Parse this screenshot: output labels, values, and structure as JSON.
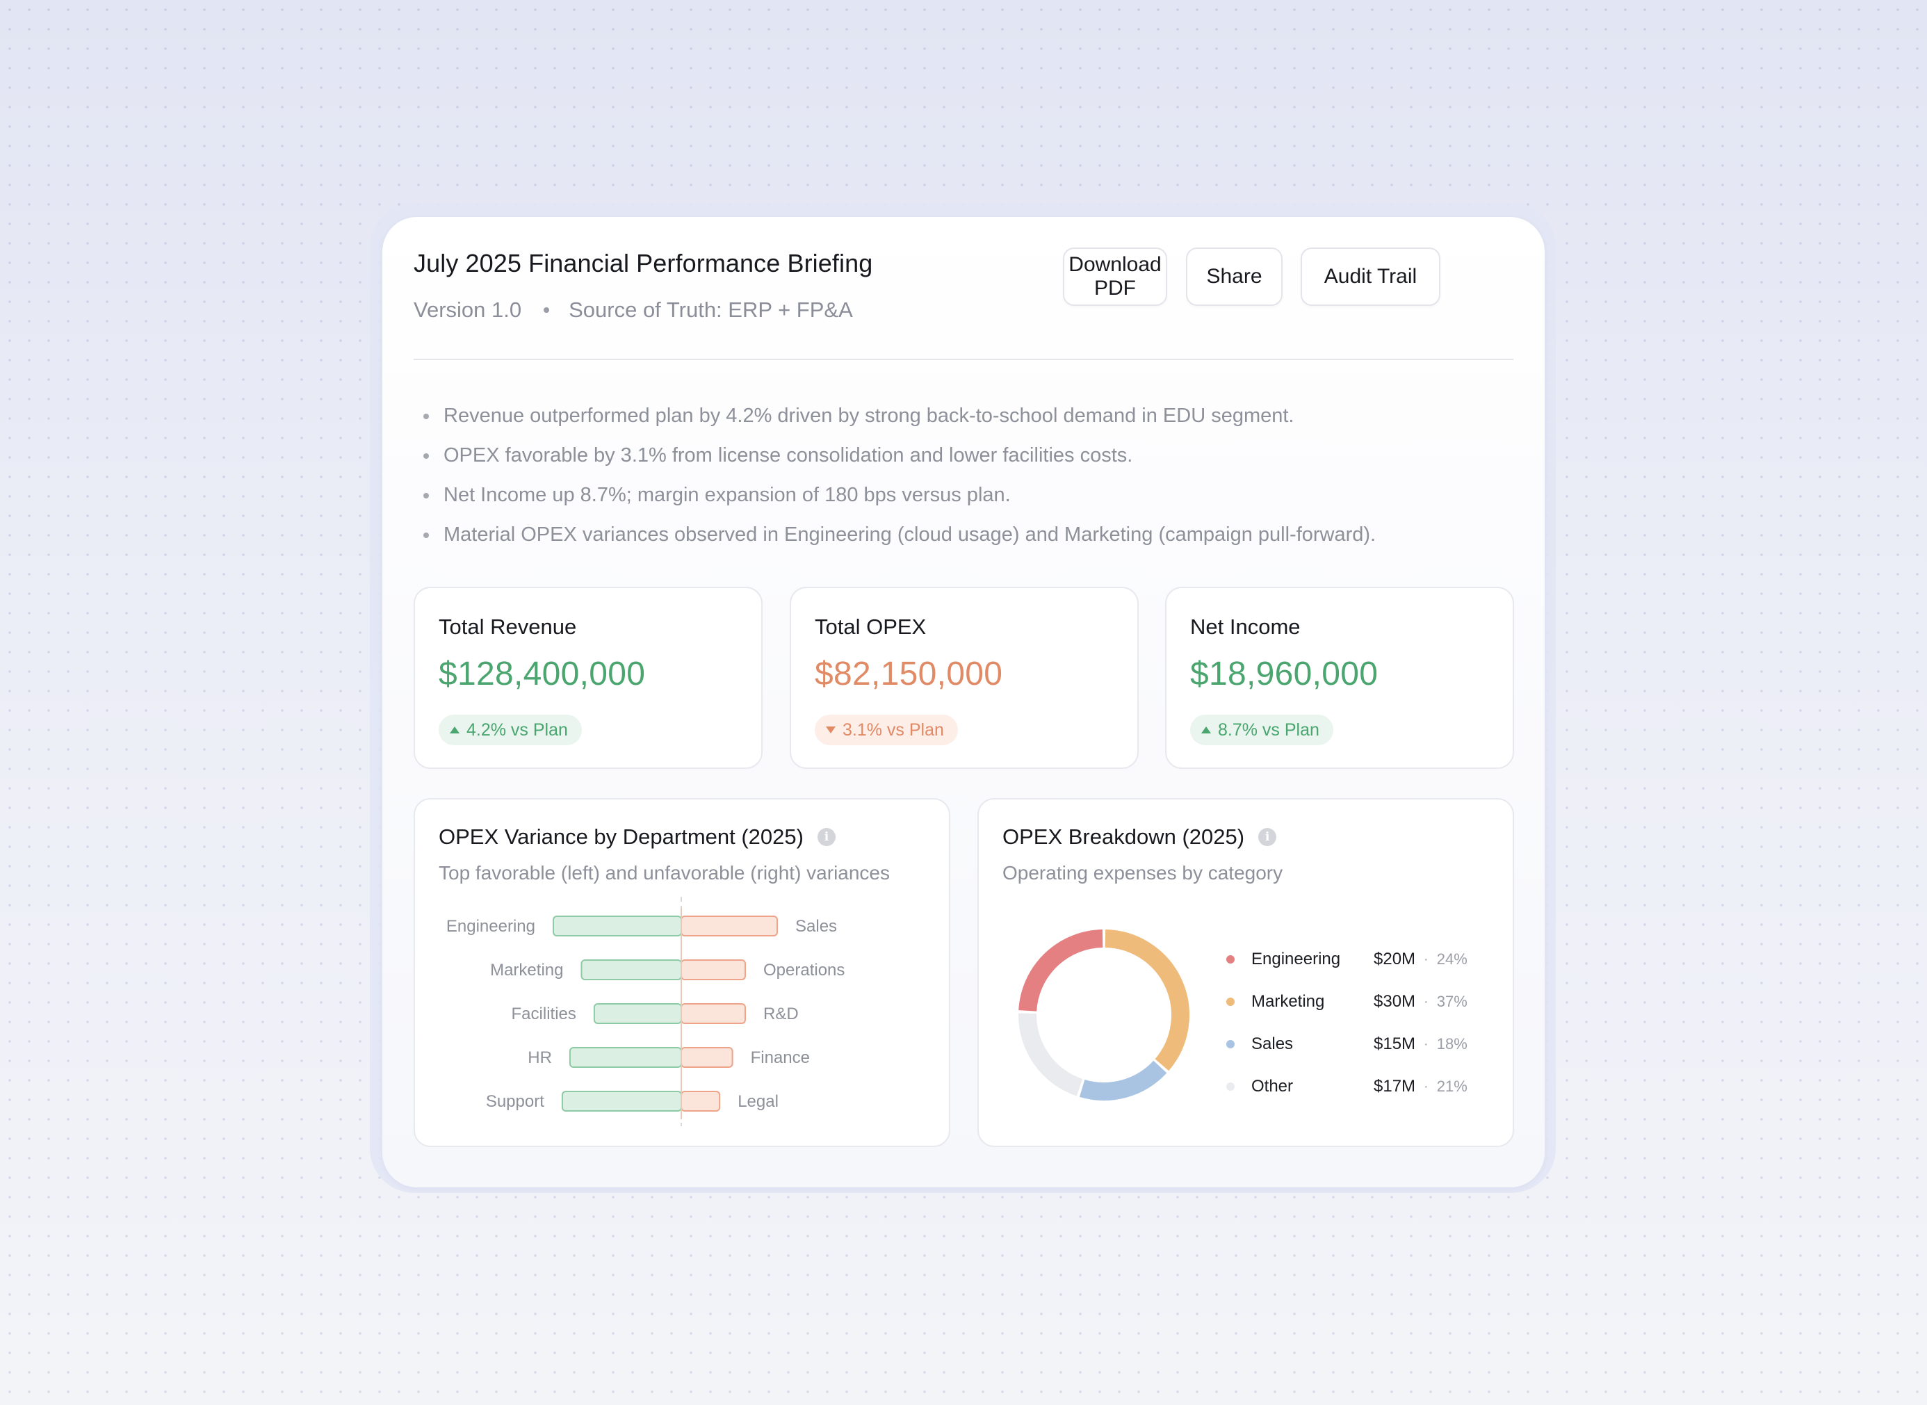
{
  "header": {
    "title": "July 2025 Financial Performance Briefing",
    "version": "Version 1.0",
    "source": "Source of Truth: ERP + FP&A"
  },
  "actions": {
    "download": "Download PDF",
    "share": "Share",
    "audit": "Audit Trail"
  },
  "highlights": [
    "Revenue outperformed plan by 4.2% driven by strong back-to-school demand in EDU segment.",
    "OPEX favorable by 3.1% from license consolidation and lower facilities costs.",
    "Net Income up 8.7%; margin expansion of 180 bps versus plan.",
    "Material OPEX variances observed in Engineering (cloud usage) and Marketing (campaign pull-forward)."
  ],
  "kpis": [
    {
      "label": "Total Revenue",
      "value": "$128,400,000",
      "delta": "4.2% vs Plan",
      "direction": "up",
      "color": "#4aa56f"
    },
    {
      "label": "Total OPEX",
      "value": "$82,150,000",
      "delta": "3.1% vs Plan",
      "direction": "down",
      "color": "#e08a66"
    },
    {
      "label": "Net Income",
      "value": "$18,960,000",
      "delta": "8.7% vs Plan",
      "direction": "up",
      "color": "#4aa56f"
    }
  ],
  "variance_panel": {
    "title": "OPEX Variance by Department (2025)",
    "subtitle": "Top favorable (left) and unfavorable (right) variances"
  },
  "breakdown_panel": {
    "title": "OPEX Breakdown (2025)",
    "subtitle": "Operating expenses by category",
    "legend": [
      {
        "name": "Engineering",
        "value": "$20M",
        "pct": "24%",
        "color": "#e47f82"
      },
      {
        "name": "Marketing",
        "value": "$30M",
        "pct": "37%",
        "color": "#eebb7a"
      },
      {
        "name": "Sales",
        "value": "$15M",
        "pct": "18%",
        "color": "#a9c3e3"
      },
      {
        "name": "Other",
        "value": "$17M",
        "pct": "21%",
        "color": "#eaebef"
      }
    ]
  },
  "chart_data": [
    {
      "type": "bar",
      "orientation": "diverging-horizontal",
      "favorable": {
        "categories": [
          "Engineering",
          "Marketing",
          "Facilities",
          "HR",
          "Support"
        ],
        "values": [
          1.0,
          0.78,
          0.68,
          0.87,
          0.93
        ],
        "color": "#dcefe3"
      },
      "unfavorable": {
        "categories": [
          "Sales",
          "Operations",
          "R&D",
          "Finance",
          "Legal"
        ],
        "values": [
          0.75,
          0.5,
          0.5,
          0.4,
          0.3
        ],
        "color": "#fbe4da"
      }
    },
    {
      "type": "pie",
      "style": "donut",
      "categories": [
        "Engineering",
        "Marketing",
        "Sales",
        "Other"
      ],
      "values": [
        20,
        30,
        15,
        17
      ],
      "colors": [
        "#e47f82",
        "#eebb7a",
        "#a9c3e3",
        "#eaebef"
      ]
    }
  ]
}
